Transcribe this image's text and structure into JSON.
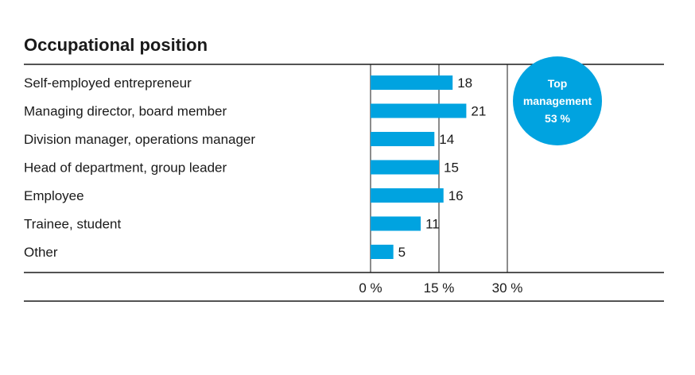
{
  "chart_data": {
    "type": "bar",
    "orientation": "horizontal",
    "title": "Occupational position",
    "categories": [
      "Self-employed entrepreneur",
      "Managing director, board member",
      "Division manager, operations manager",
      "Head of department, group leader",
      "Employee",
      "Trainee, student",
      "Other"
    ],
    "values": [
      18,
      21,
      14,
      15,
      16,
      11,
      5
    ],
    "xlim": [
      0,
      30
    ],
    "xticks": [
      0,
      15,
      30
    ],
    "xtick_labels": [
      "0 %",
      "15 %",
      "30 %"
    ],
    "grid": true,
    "bar_color": "#00a3e0",
    "annotation": {
      "lines": [
        "Top",
        "management",
        "53 %"
      ],
      "color": "#00a3e0"
    }
  }
}
